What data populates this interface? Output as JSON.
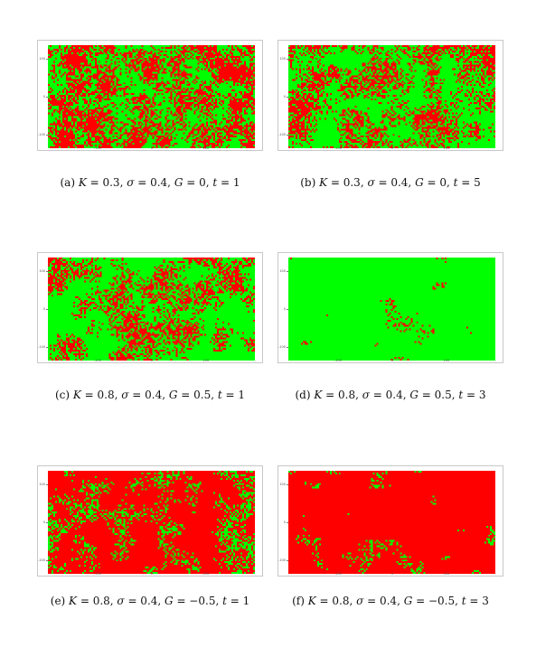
{
  "colors": {
    "red": "#ff0000",
    "green": "#00ff00"
  },
  "axis": {
    "yticks": [
      "100",
      "0",
      "-100"
    ],
    "xticks": [
      "-100",
      "0",
      "100"
    ]
  },
  "figures": [
    {
      "sub": "(a)",
      "K": "0.3",
      "sigma": "0.4",
      "G": "0",
      "t": "1",
      "green_fraction": 0.5
    },
    {
      "sub": "(b)",
      "K": "0.3",
      "sigma": "0.4",
      "G": "0",
      "t": "5",
      "green_fraction": 0.55
    },
    {
      "sub": "(c)",
      "K": "0.8",
      "sigma": "0.4",
      "G": "0.5",
      "t": "1",
      "green_fraction": 0.6
    },
    {
      "sub": "(d)",
      "K": "0.8",
      "sigma": "0.4",
      "G": "0.5",
      "t": "3",
      "green_fraction": 0.85
    },
    {
      "sub": "(e)",
      "K": "0.8",
      "sigma": "0.4",
      "G": "−0.5",
      "t": "1",
      "green_fraction": 0.35
    },
    {
      "sub": "(f)",
      "K": "0.8",
      "sigma": "0.4",
      "G": "−0.5",
      "t": "3",
      "green_fraction": 0.2
    }
  ]
}
